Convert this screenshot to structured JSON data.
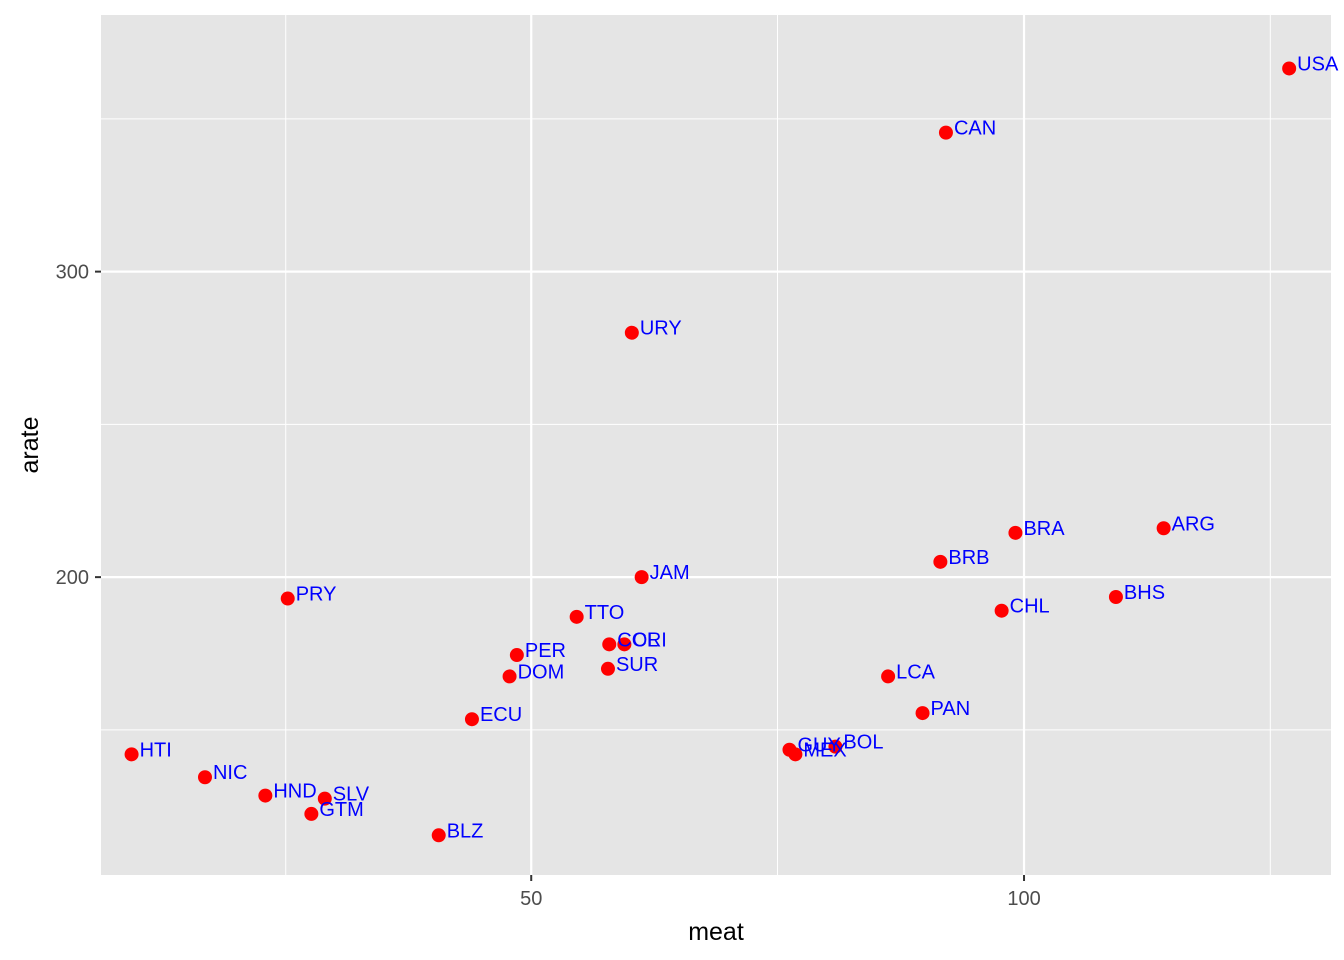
{
  "chart_data": {
    "type": "scatter",
    "title": "",
    "xlabel": "meat",
    "ylabel": "arate",
    "x_scale": "log",
    "xlim": [
      27.3,
      154.0
    ],
    "ylim": [
      102.5,
      384.0
    ],
    "x_ticks": [
      {
        "value": 50,
        "label": "50"
      },
      {
        "value": 100,
        "label": "100"
      }
    ],
    "y_ticks": [
      {
        "value": 200,
        "label": "200"
      },
      {
        "value": 300,
        "label": "300"
      }
    ],
    "x_minor": [
      35.4,
      70.7,
      141.4
    ],
    "y_minor": [
      150,
      250,
      350
    ],
    "point_color": "#ff0000",
    "label_color": "#0000ff",
    "panel_color": "#e5e5e5",
    "grid_color": "#ffffff",
    "points": [
      {
        "label": "USA",
        "x": 145.2,
        "y": 366.5
      },
      {
        "label": "CAN",
        "x": 89.6,
        "y": 345.5
      },
      {
        "label": "URY",
        "x": 57.6,
        "y": 280.0
      },
      {
        "label": "BRA",
        "x": 98.8,
        "y": 214.5
      },
      {
        "label": "ARG",
        "x": 121.7,
        "y": 216.0
      },
      {
        "label": "BRB",
        "x": 88.9,
        "y": 205.0
      },
      {
        "label": "JAM",
        "x": 58.4,
        "y": 200.0
      },
      {
        "label": "PRY",
        "x": 35.5,
        "y": 193.0
      },
      {
        "label": "BHS",
        "x": 113.8,
        "y": 193.5
      },
      {
        "label": "CHL",
        "x": 96.9,
        "y": 189.0
      },
      {
        "label": "TTO",
        "x": 53.3,
        "y": 187.0
      },
      {
        "label": "COL",
        "x": 55.8,
        "y": 178.0
      },
      {
        "label": "CRI",
        "x": 57.0,
        "y": 178.0
      },
      {
        "label": "PER",
        "x": 49.0,
        "y": 174.5
      },
      {
        "label": "SUR",
        "x": 55.7,
        "y": 170.0
      },
      {
        "label": "DOM",
        "x": 48.5,
        "y": 167.5
      },
      {
        "label": "LCA",
        "x": 82.6,
        "y": 167.5
      },
      {
        "label": "PAN",
        "x": 86.7,
        "y": 155.5
      },
      {
        "label": "ECU",
        "x": 46.0,
        "y": 153.5
      },
      {
        "label": "GUY",
        "x": 71.9,
        "y": 143.5
      },
      {
        "label": "BOL",
        "x": 76.7,
        "y": 144.5
      },
      {
        "label": "MEX",
        "x": 72.5,
        "y": 142.0
      },
      {
        "label": "HTI",
        "x": 28.5,
        "y": 142.0
      },
      {
        "label": "NIC",
        "x": 31.6,
        "y": 134.5
      },
      {
        "label": "HND",
        "x": 34.4,
        "y": 128.5
      },
      {
        "label": "SLV",
        "x": 37.4,
        "y": 127.5
      },
      {
        "label": "GTM",
        "x": 36.7,
        "y": 122.5
      },
      {
        "label": "BLZ",
        "x": 43.9,
        "y": 115.5
      }
    ]
  }
}
